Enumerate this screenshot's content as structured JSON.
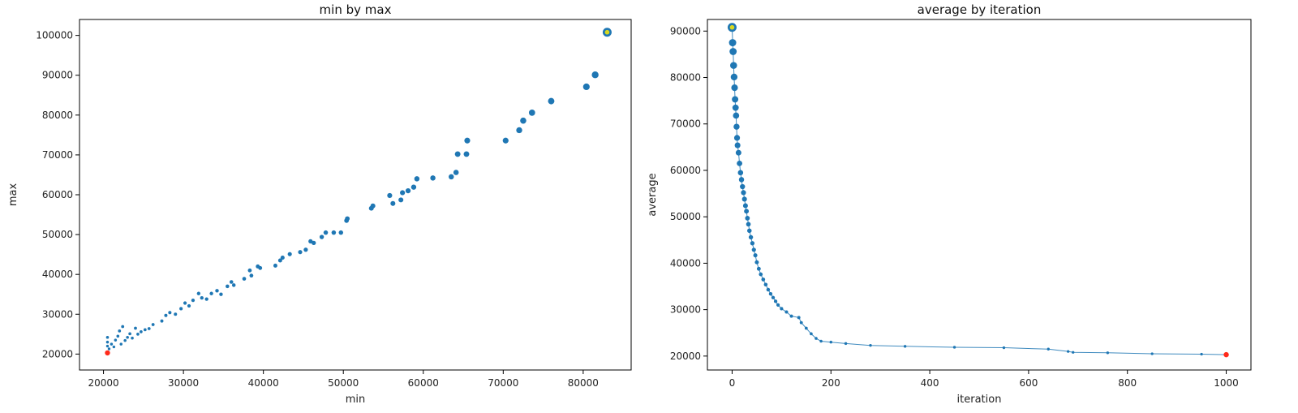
{
  "chart_data": [
    {
      "type": "scatter",
      "title": "min by max",
      "xlabel": "min",
      "ylabel": "max",
      "xlim": [
        17000,
        86000
      ],
      "ylim": [
        16000,
        104000
      ],
      "xticks": [
        20000,
        30000,
        40000,
        50000,
        60000,
        70000,
        80000
      ],
      "yticks": [
        20000,
        30000,
        40000,
        50000,
        60000,
        70000,
        80000,
        90000,
        100000
      ],
      "grid": false,
      "colors": {
        "points": "#1f77b4",
        "best": "#ff2a1a",
        "start": "#d8d820"
      },
      "start_point": [
        83000,
        100800
      ],
      "best_point": [
        20500,
        20300
      ],
      "points": [
        [
          20500,
          22000
        ],
        [
          20500,
          23000
        ],
        [
          20500,
          24200
        ],
        [
          20700,
          21300
        ],
        [
          21000,
          22500
        ],
        [
          21300,
          21800
        ],
        [
          21500,
          23500
        ],
        [
          21800,
          24500
        ],
        [
          22000,
          25800
        ],
        [
          22200,
          22500
        ],
        [
          22400,
          26900
        ],
        [
          22700,
          23400
        ],
        [
          23000,
          24200
        ],
        [
          23300,
          25100
        ],
        [
          23600,
          24000
        ],
        [
          24000,
          26500
        ],
        [
          24300,
          25000
        ],
        [
          24700,
          25600
        ],
        [
          25200,
          26100
        ],
        [
          25700,
          26400
        ],
        [
          26200,
          27400
        ],
        [
          27300,
          28300
        ],
        [
          27800,
          29700
        ],
        [
          28300,
          30400
        ],
        [
          29000,
          30000
        ],
        [
          29700,
          31400
        ],
        [
          30200,
          32800
        ],
        [
          30700,
          32100
        ],
        [
          31200,
          33500
        ],
        [
          31900,
          35200
        ],
        [
          32300,
          34100
        ],
        [
          32900,
          33800
        ],
        [
          33500,
          35200
        ],
        [
          34200,
          35900
        ],
        [
          34700,
          35000
        ],
        [
          35500,
          37000
        ],
        [
          36000,
          38100
        ],
        [
          36300,
          37300
        ],
        [
          37600,
          38900
        ],
        [
          38300,
          41000
        ],
        [
          38500,
          39700
        ],
        [
          39300,
          42000
        ],
        [
          39600,
          41600
        ],
        [
          41500,
          42200
        ],
        [
          42100,
          43500
        ],
        [
          42400,
          44200
        ],
        [
          43300,
          45100
        ],
        [
          44600,
          45600
        ],
        [
          45300,
          46200
        ],
        [
          45900,
          48300
        ],
        [
          46300,
          47900
        ],
        [
          47300,
          49400
        ],
        [
          47800,
          50500
        ],
        [
          48800,
          50500
        ],
        [
          49700,
          50500
        ],
        [
          50400,
          53500
        ],
        [
          50500,
          54000
        ],
        [
          53500,
          56600
        ],
        [
          53700,
          57200
        ],
        [
          55800,
          59800
        ],
        [
          56200,
          57800
        ],
        [
          57200,
          58700
        ],
        [
          57400,
          60500
        ],
        [
          58100,
          61000
        ],
        [
          58800,
          61900
        ],
        [
          59200,
          64000
        ],
        [
          61200,
          64200
        ],
        [
          63500,
          64500
        ],
        [
          64100,
          65600
        ],
        [
          64300,
          70200
        ],
        [
          65400,
          70200
        ],
        [
          65500,
          73600
        ],
        [
          70300,
          73600
        ],
        [
          72000,
          76200
        ],
        [
          72500,
          78600
        ],
        [
          73600,
          80600
        ],
        [
          76000,
          83500
        ],
        [
          80400,
          87100
        ],
        [
          81500,
          90100
        ]
      ]
    },
    {
      "type": "line",
      "title": "average by iteration",
      "xlabel": "iteration",
      "ylabel": "average",
      "xlim": [
        -50,
        1050
      ],
      "ylim": [
        17000,
        92500
      ],
      "xticks": [
        0,
        200,
        400,
        600,
        800,
        1000
      ],
      "yticks": [
        20000,
        30000,
        40000,
        50000,
        60000,
        70000,
        80000,
        90000
      ],
      "grid": false,
      "colors": {
        "line": "#1f77b4",
        "best": "#ff2a1a",
        "start": "#d8d820"
      },
      "start_point": [
        0,
        90800
      ],
      "best_point": [
        1000,
        20300
      ],
      "points": [
        [
          0,
          90800
        ],
        [
          1,
          87500
        ],
        [
          2,
          85600
        ],
        [
          3,
          82600
        ],
        [
          4,
          80100
        ],
        [
          5,
          77800
        ],
        [
          6,
          75300
        ],
        [
          7,
          73500
        ],
        [
          8,
          71800
        ],
        [
          9,
          69400
        ],
        [
          10,
          67000
        ],
        [
          11,
          65400
        ],
        [
          13,
          63800
        ],
        [
          15,
          61500
        ],
        [
          17,
          59500
        ],
        [
          19,
          58000
        ],
        [
          21,
          56500
        ],
        [
          23,
          55200
        ],
        [
          25,
          53800
        ],
        [
          27,
          52400
        ],
        [
          29,
          51200
        ],
        [
          31,
          49700
        ],
        [
          33,
          48400
        ],
        [
          35,
          47000
        ],
        [
          38,
          45600
        ],
        [
          41,
          44300
        ],
        [
          44,
          42900
        ],
        [
          47,
          41700
        ],
        [
          50,
          40200
        ],
        [
          54,
          38800
        ],
        [
          58,
          37600
        ],
        [
          63,
          36500
        ],
        [
          68,
          35400
        ],
        [
          73,
          34300
        ],
        [
          78,
          33400
        ],
        [
          83,
          32600
        ],
        [
          88,
          31800
        ],
        [
          93,
          31000
        ],
        [
          100,
          30200
        ],
        [
          110,
          29500
        ],
        [
          120,
          28600
        ],
        [
          135,
          28300
        ],
        [
          140,
          27200
        ],
        [
          150,
          26000
        ],
        [
          160,
          24800
        ],
        [
          170,
          23800
        ],
        [
          180,
          23200
        ],
        [
          200,
          23000
        ],
        [
          230,
          22700
        ],
        [
          280,
          22300
        ],
        [
          350,
          22100
        ],
        [
          450,
          21900
        ],
        [
          550,
          21800
        ],
        [
          640,
          21500
        ],
        [
          680,
          21000
        ],
        [
          690,
          20800
        ],
        [
          760,
          20700
        ],
        [
          850,
          20500
        ],
        [
          950,
          20400
        ],
        [
          1000,
          20300
        ]
      ]
    }
  ]
}
